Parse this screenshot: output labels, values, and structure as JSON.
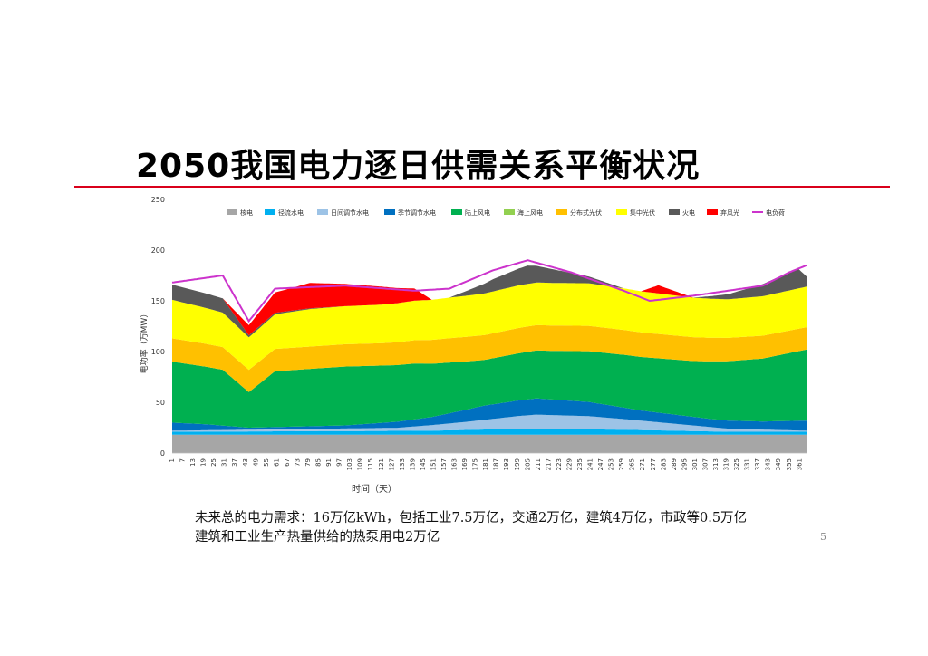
{
  "slide": {
    "title": "2050我国电力逐日供需关系平衡状况",
    "note_line1": "未来总的电力需求：16万亿kWh，包括工业7.5万亿，交通2万亿，建筑4万亿，市政等0.5万亿",
    "note_line2": "建筑和工业生产热量供给的热泵用电2万亿",
    "page_number": "5"
  },
  "chart_data": {
    "type": "area",
    "stacked": true,
    "ylabel": "电功率（万MW）",
    "xlabel": "时间（天）",
    "ylim": [
      0,
      250
    ],
    "yticks": [
      0,
      50,
      100,
      150,
      200,
      250
    ],
    "x_tick_start": 1,
    "x_tick_step": 6,
    "x_tick_end": 361,
    "days": 365,
    "legend_position": "top",
    "series": [
      {
        "name": "核电",
        "color": "#a6a6a6",
        "values": [
          [
            1,
            18
          ],
          [
            365,
            18
          ]
        ]
      },
      {
        "name": "径流水电",
        "color": "#00b0f0",
        "values": [
          [
            1,
            3
          ],
          [
            150,
            4
          ],
          [
            200,
            6
          ],
          [
            260,
            5
          ],
          [
            320,
            3
          ],
          [
            365,
            3
          ]
        ]
      },
      {
        "name": "日间调节水电",
        "color": "#9dc3e6",
        "values": [
          [
            1,
            1
          ],
          [
            130,
            3
          ],
          [
            170,
            8
          ],
          [
            210,
            14
          ],
          [
            240,
            13
          ],
          [
            280,
            8
          ],
          [
            320,
            3
          ],
          [
            365,
            1
          ]
        ]
      },
      {
        "name": "季节调节水电",
        "color": "#0070c0",
        "values": [
          [
            1,
            8
          ],
          [
            20,
            6
          ],
          [
            45,
            2
          ],
          [
            100,
            3
          ],
          [
            150,
            8
          ],
          [
            180,
            14
          ],
          [
            210,
            16
          ],
          [
            240,
            14
          ],
          [
            270,
            10
          ],
          [
            310,
            8
          ],
          [
            340,
            8
          ],
          [
            365,
            10
          ]
        ]
      },
      {
        "name": "陆上风电",
        "color": "#00b050",
        "values": [
          [
            1,
            60
          ],
          [
            30,
            55
          ],
          [
            45,
            35
          ],
          [
            60,
            55
          ],
          [
            100,
            58
          ],
          [
            140,
            55
          ],
          [
            180,
            45
          ],
          [
            220,
            48
          ],
          [
            260,
            52
          ],
          [
            300,
            55
          ],
          [
            340,
            62
          ],
          [
            365,
            70
          ]
        ]
      },
      {
        "name": "海上风电",
        "color": "#92d050",
        "values": [
          [
            1,
            0
          ],
          [
            365,
            0
          ]
        ]
      },
      {
        "name": "分布式光伏",
        "color": "#ffc000",
        "values": [
          [
            1,
            23
          ],
          [
            45,
            22
          ],
          [
            80,
            22
          ],
          [
            120,
            22
          ],
          [
            160,
            24
          ],
          [
            200,
            25
          ],
          [
            240,
            25
          ],
          [
            280,
            24
          ],
          [
            320,
            23
          ],
          [
            365,
            22
          ]
        ]
      },
      {
        "name": "集中光伏",
        "color": "#ffff00",
        "values": [
          [
            1,
            38
          ],
          [
            45,
            32
          ],
          [
            80,
            37
          ],
          [
            120,
            38
          ],
          [
            160,
            40
          ],
          [
            200,
            42
          ],
          [
            240,
            42
          ],
          [
            280,
            40
          ],
          [
            320,
            38
          ],
          [
            365,
            40
          ]
        ]
      },
      {
        "name": "火电",
        "color": "#595959",
        "values": [
          [
            1,
            15
          ],
          [
            30,
            14
          ],
          [
            45,
            2
          ],
          [
            100,
            0
          ],
          [
            160,
            0
          ],
          [
            185,
            12
          ],
          [
            205,
            18
          ],
          [
            230,
            10
          ],
          [
            260,
            0
          ],
          [
            300,
            0
          ],
          [
            320,
            5
          ],
          [
            340,
            12
          ],
          [
            360,
            20
          ],
          [
            365,
            10
          ]
        ]
      },
      {
        "name": "弃风光",
        "color": "#ff0000",
        "values": [
          [
            1,
            0
          ],
          [
            30,
            0
          ],
          [
            45,
            10
          ],
          [
            60,
            20
          ],
          [
            80,
            25
          ],
          [
            100,
            22
          ],
          [
            120,
            18
          ],
          [
            140,
            12
          ],
          [
            150,
            0
          ],
          [
            270,
            0
          ],
          [
            280,
            8
          ],
          [
            300,
            0
          ],
          [
            365,
            0
          ]
        ]
      },
      {
        "name": "电负荷",
        "color": "#cc33cc",
        "kind": "line",
        "values": [
          [
            1,
            168
          ],
          [
            30,
            175
          ],
          [
            45,
            130
          ],
          [
            60,
            162
          ],
          [
            100,
            165
          ],
          [
            140,
            160
          ],
          [
            160,
            162
          ],
          [
            185,
            180
          ],
          [
            205,
            190
          ],
          [
            230,
            178
          ],
          [
            260,
            160
          ],
          [
            275,
            150
          ],
          [
            300,
            155
          ],
          [
            320,
            160
          ],
          [
            340,
            165
          ],
          [
            355,
            178
          ],
          [
            365,
            185
          ]
        ]
      }
    ]
  }
}
